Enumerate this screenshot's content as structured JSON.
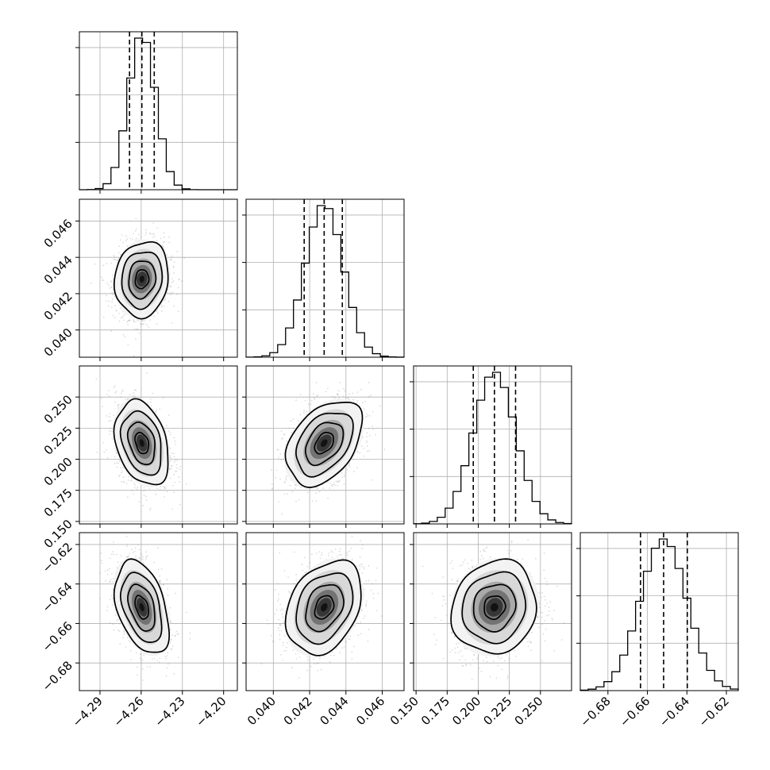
{
  "chart_data": {
    "type": "corner",
    "grid_lines": true,
    "parameters": [
      {
        "index": 0,
        "range": [
          -4.305,
          -4.19
        ],
        "ticks": [
          -4.29,
          -4.26,
          -4.23,
          -4.2
        ],
        "tick_labels": [
          "−4.29",
          "−4.26",
          "−4.23",
          "−4.20"
        ],
        "quantiles": [
          -4.2685,
          -4.2595,
          -4.2505
        ],
        "center": -4.2595,
        "sigma": 0.0098
      },
      {
        "index": 1,
        "range": [
          0.0385,
          0.0472
        ],
        "ticks": [
          0.04,
          0.042,
          0.044,
          0.046
        ],
        "tick_labels": [
          "0.040",
          "0.042",
          "0.044",
          "0.046"
        ],
        "quantiles": [
          0.0417,
          0.0428,
          0.0438
        ],
        "center": 0.0428,
        "sigma": 0.00104
      },
      {
        "index": 2,
        "range": [
          0.148,
          0.275
        ],
        "ticks": [
          0.15,
          0.175,
          0.2,
          0.225,
          0.25
        ],
        "tick_labels": [
          "0.150",
          "0.175",
          "0.200",
          "0.225",
          "0.250"
        ],
        "quantiles": [
          0.196,
          0.213,
          0.23
        ],
        "center": 0.213,
        "sigma": 0.017
      },
      {
        "index": 3,
        "range": [
          -0.694,
          -0.614
        ],
        "ticks": [
          -0.68,
          -0.66,
          -0.64,
          -0.62
        ],
        "tick_labels": [
          "−0.68",
          "−0.66",
          "−0.64",
          "−0.62"
        ],
        "quantiles": [
          -0.6635,
          -0.6518,
          -0.6398
        ],
        "center": -0.6518,
        "sigma": 0.0118
      }
    ],
    "correlations": [
      {
        "x": 0,
        "y": 1,
        "rho": 0.1
      },
      {
        "x": 0,
        "y": 2,
        "rho": -0.3
      },
      {
        "x": 1,
        "y": 2,
        "rho": 0.4
      },
      {
        "x": 0,
        "y": 3,
        "rho": -0.4
      },
      {
        "x": 1,
        "y": 3,
        "rho": 0.3
      },
      {
        "x": 2,
        "y": 3,
        "rho": 0.1
      }
    ],
    "histogram_bins": 20,
    "contour_levels_sigma": [
      0.5,
      1.0,
      1.5,
      2.0
    ],
    "colors": {
      "ink": "#000000",
      "grid": "#b0b0b0",
      "samples": "#9a9a9a"
    }
  }
}
